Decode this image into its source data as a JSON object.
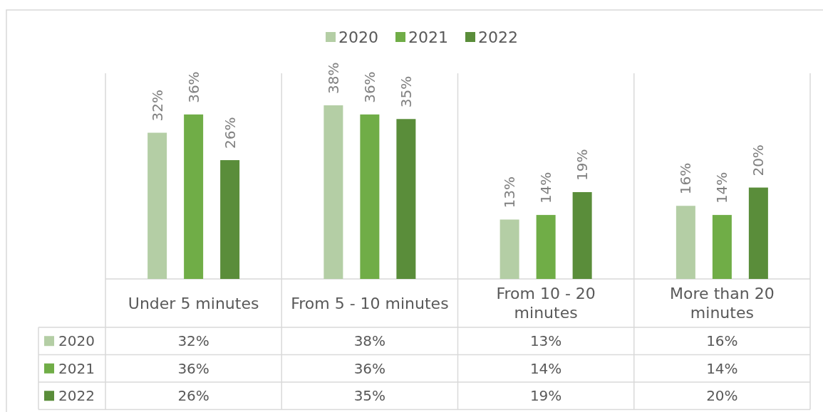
{
  "chart_data": {
    "type": "bar",
    "categories": [
      "Under 5 minutes",
      "From 5 - 10 minutes",
      "From 10 - 20 minutes",
      "More than 20 minutes"
    ],
    "series": [
      {
        "name": "2020",
        "color": "#b4cea5",
        "values": [
          32,
          38,
          13,
          16
        ],
        "value_labels": [
          "32%",
          "38%",
          "13%",
          "16%"
        ]
      },
      {
        "name": "2021",
        "color": "#70ad47",
        "values": [
          36,
          36,
          14,
          14
        ],
        "value_labels": [
          "36%",
          "36%",
          "14%",
          "14%"
        ]
      },
      {
        "name": "2022",
        "color": "#5a8d3a",
        "values": [
          26,
          35,
          19,
          20
        ],
        "value_labels": [
          "26%",
          "35%",
          "19%",
          "20%"
        ]
      }
    ],
    "legend": "top"
  }
}
